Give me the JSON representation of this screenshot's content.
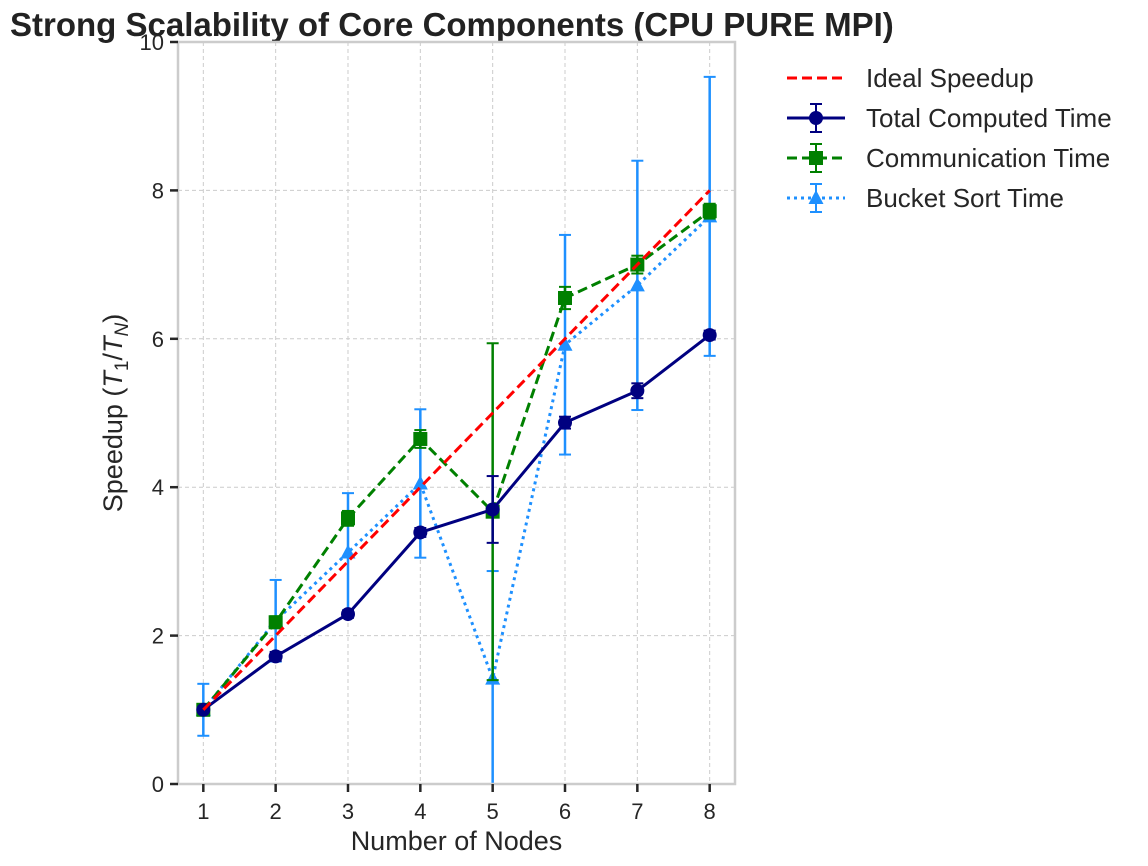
{
  "chart_data": {
    "type": "line",
    "title": "Strong Scalability of Core Components (CPU PURE MPI)",
    "xlabel": "Number of Nodes",
    "ylabel_main": "Speedup (",
    "ylabel_math": [
      "T",
      "1",
      "/",
      "T",
      "N",
      ")"
    ],
    "x": [
      1,
      2,
      3,
      4,
      5,
      6,
      7,
      8
    ],
    "xlim": [
      0.65,
      8.35
    ],
    "ylim": [
      0,
      10
    ],
    "xticks": [
      "1",
      "2",
      "3",
      "4",
      "5",
      "6",
      "7",
      "8"
    ],
    "yticks": [
      "0",
      "2",
      "4",
      "6",
      "8",
      "10"
    ],
    "grid": true,
    "legend_position": "outside-top-right",
    "series": [
      {
        "name": "Ideal Speedup",
        "color": "#ff0000",
        "line_style": "dashed",
        "marker": "none",
        "values": [
          1,
          2,
          3,
          4,
          5,
          6,
          7,
          8
        ]
      },
      {
        "name": "Total Computed Time",
        "color": "#000080",
        "line_style": "solid",
        "marker": "circle",
        "values": [
          1.0,
          1.72,
          2.29,
          3.39,
          3.7,
          4.87,
          5.3,
          6.05
        ],
        "errors": [
          0.03,
          0.06,
          0.05,
          0.06,
          0.45,
          0.08,
          0.1,
          0.06
        ]
      },
      {
        "name": "Communication Time",
        "color": "#008000",
        "line_style": "dashed",
        "marker": "square",
        "values": [
          1.0,
          2.18,
          3.58,
          4.65,
          3.67,
          6.55,
          7.0,
          7.72
        ],
        "errors": [
          0.03,
          0.08,
          0.1,
          0.12,
          2.27,
          0.15,
          0.12,
          0.1
        ]
      },
      {
        "name": "Bucket Sort Time",
        "color": "#1e90ff",
        "line_style": "dotted",
        "marker": "triangle",
        "values": [
          1.0,
          2.2,
          3.12,
          4.05,
          1.42,
          5.92,
          6.72,
          7.65
        ],
        "errors": [
          0.35,
          0.55,
          0.8,
          1.0,
          1.45,
          1.48,
          1.68,
          1.88
        ]
      }
    ]
  }
}
